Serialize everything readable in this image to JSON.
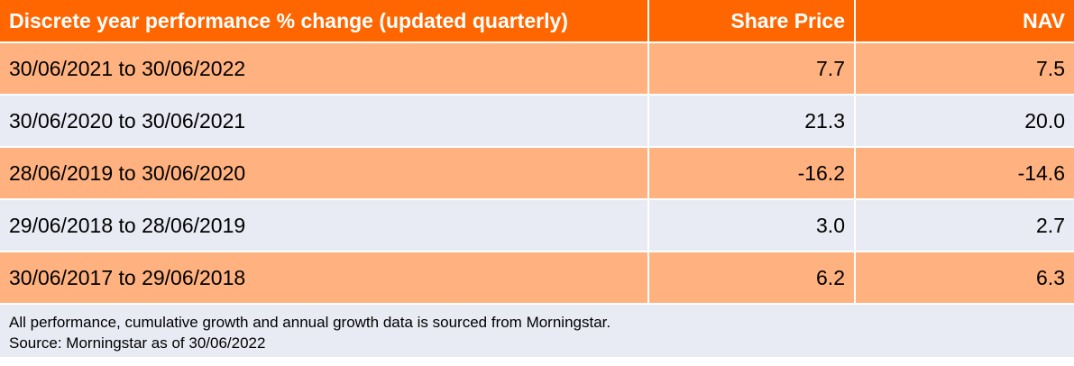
{
  "table": {
    "headers": {
      "period": "Discrete year performance % change (updated quarterly)",
      "share_price": "Share Price",
      "nav": "NAV"
    },
    "rows": [
      {
        "period": "30/06/2021 to 30/06/2022",
        "share_price": "7.7",
        "nav": "7.5"
      },
      {
        "period": "30/06/2020 to 30/06/2021",
        "share_price": "21.3",
        "nav": "20.0"
      },
      {
        "period": "28/06/2019 to 30/06/2020",
        "share_price": "-16.2",
        "nav": "-14.6"
      },
      {
        "period": "29/06/2018 to 28/06/2019",
        "share_price": "3.0",
        "nav": "2.7"
      },
      {
        "period": "30/06/2017 to 29/06/2018",
        "share_price": "6.2",
        "nav": "6.3"
      }
    ]
  },
  "footnote": {
    "line1": "All performance, cumulative growth and annual growth data is sourced from Morningstar.",
    "line2": "Source: Morningstar as of 30/06/2022"
  },
  "colors": {
    "header_bg": "#ff6600",
    "row_orange": "#ffb27f",
    "row_grey": "#e8ebf3"
  }
}
